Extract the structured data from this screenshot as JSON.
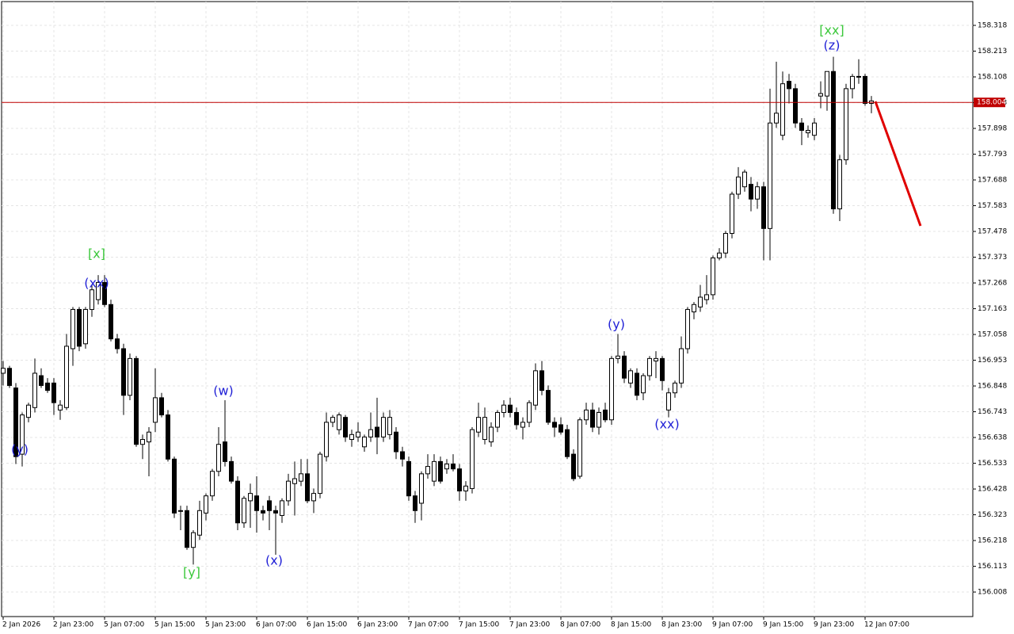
{
  "chart_data": {
    "type": "candlestick",
    "ylim": [
      155.908,
      158.415
    ],
    "yticks": [
      158.318,
      158.213,
      158.108,
      158.003,
      157.898,
      157.793,
      157.688,
      157.583,
      157.478,
      157.373,
      157.268,
      157.163,
      157.058,
      156.953,
      156.848,
      156.743,
      156.638,
      156.533,
      156.428,
      156.323,
      156.218,
      156.113,
      156.008
    ],
    "grid": true,
    "bull_color": "#ffffff",
    "bear_color": "#000000",
    "current_price": 158.004,
    "current_price_color": "#c00000",
    "categories": [
      "2 Jan 2026",
      null,
      null,
      null,
      null,
      null,
      null,
      null,
      "2 Jan 23:00",
      null,
      null,
      null,
      null,
      null,
      null,
      null,
      "5 Jan 07:00",
      null,
      null,
      null,
      null,
      null,
      null,
      null,
      "5 Jan 15:00",
      null,
      null,
      null,
      null,
      null,
      null,
      null,
      "5 Jan 23:00",
      null,
      null,
      null,
      null,
      null,
      null,
      null,
      "6 Jan 07:00",
      null,
      null,
      null,
      null,
      null,
      null,
      null,
      "6 Jan 15:00",
      null,
      null,
      null,
      null,
      null,
      null,
      null,
      "6 Jan 23:00",
      null,
      null,
      null,
      null,
      null,
      null,
      null,
      "7 Jan 07:00",
      null,
      null,
      null,
      null,
      null,
      null,
      null,
      "7 Jan 15:00",
      null,
      null,
      null,
      null,
      null,
      null,
      null,
      "7 Jan 23:00",
      null,
      null,
      null,
      null,
      null,
      null,
      null,
      "8 Jan 07:00",
      null,
      null,
      null,
      null,
      null,
      null,
      null,
      "8 Jan 15:00",
      null,
      null,
      null,
      null,
      null,
      null,
      null,
      "8 Jan 23:00",
      null,
      null,
      null,
      null,
      null,
      null,
      null,
      "9 Jan 07:00",
      null,
      null,
      null,
      null,
      null,
      null,
      null,
      "9 Jan 15:00",
      null,
      null,
      null,
      null,
      null,
      null,
      null,
      "9 Jan 23:00",
      null,
      null,
      null,
      null,
      null,
      null,
      null,
      "12 Jan 07:00",
      null
    ],
    "ohlc": [
      [
        156.9,
        156.95,
        156.85,
        156.92
      ],
      [
        156.92,
        156.93,
        156.84,
        156.85
      ],
      [
        156.84,
        156.86,
        156.53,
        156.56
      ],
      [
        156.57,
        156.74,
        156.52,
        156.73
      ],
      [
        156.72,
        156.78,
        156.7,
        156.77
      ],
      [
        156.76,
        156.96,
        156.74,
        156.9
      ],
      [
        156.89,
        156.92,
        156.84,
        156.85
      ],
      [
        156.86,
        156.88,
        156.82,
        156.83
      ],
      [
        156.86,
        156.88,
        156.73,
        156.78
      ],
      [
        156.75,
        156.79,
        156.71,
        156.77
      ],
      [
        156.76,
        157.06,
        156.75,
        157.01
      ],
      [
        157.0,
        157.17,
        156.93,
        157.16
      ],
      [
        157.16,
        157.17,
        156.99,
        157.01
      ],
      [
        157.02,
        157.17,
        157.0,
        157.16
      ],
      [
        157.16,
        157.26,
        157.13,
        157.24
      ],
      [
        157.2,
        157.3,
        157.18,
        157.27
      ],
      [
        157.27,
        157.3,
        157.17,
        157.18
      ],
      [
        157.18,
        157.2,
        157.03,
        157.04
      ],
      [
        157.04,
        157.06,
        156.98,
        157.0
      ],
      [
        157.0,
        157.02,
        156.73,
        156.81
      ],
      [
        156.81,
        156.98,
        156.79,
        156.96
      ],
      [
        156.96,
        156.97,
        156.6,
        156.61
      ],
      [
        156.61,
        156.65,
        156.55,
        156.63
      ],
      [
        156.62,
        156.68,
        156.48,
        156.66
      ],
      [
        156.7,
        156.92,
        156.66,
        156.8
      ],
      [
        156.8,
        156.82,
        156.72,
        156.73
      ],
      [
        156.73,
        156.75,
        156.54,
        156.55
      ],
      [
        156.55,
        156.56,
        156.31,
        156.33
      ],
      [
        156.34,
        156.36,
        156.26,
        156.34
      ],
      [
        156.34,
        156.36,
        156.18,
        156.19
      ],
      [
        156.19,
        156.26,
        156.12,
        156.25
      ],
      [
        156.24,
        156.38,
        156.22,
        156.34
      ],
      [
        156.33,
        156.41,
        156.3,
        156.4
      ],
      [
        156.4,
        156.51,
        156.38,
        156.5
      ],
      [
        156.5,
        156.68,
        156.48,
        156.61
      ],
      [
        156.62,
        156.79,
        156.52,
        156.54
      ],
      [
        156.54,
        156.56,
        156.45,
        156.46
      ],
      [
        156.46,
        156.48,
        156.26,
        156.29
      ],
      [
        156.29,
        156.4,
        156.27,
        156.39
      ],
      [
        156.38,
        156.45,
        156.27,
        156.41
      ],
      [
        156.4,
        156.48,
        156.25,
        156.34
      ],
      [
        156.34,
        156.36,
        156.3,
        156.33
      ],
      [
        156.38,
        156.4,
        156.26,
        156.34
      ],
      [
        156.34,
        156.36,
        156.16,
        156.33
      ],
      [
        156.32,
        156.39,
        156.29,
        156.38
      ],
      [
        156.38,
        156.49,
        156.36,
        156.46
      ],
      [
        156.45,
        156.54,
        156.32,
        156.47
      ],
      [
        156.46,
        156.55,
        156.44,
        156.49
      ],
      [
        156.49,
        156.55,
        156.37,
        156.38
      ],
      [
        156.38,
        156.43,
        156.33,
        156.41
      ],
      [
        156.41,
        156.58,
        156.39,
        156.57
      ],
      [
        156.56,
        156.74,
        156.54,
        156.7
      ],
      [
        156.7,
        156.73,
        156.68,
        156.72
      ],
      [
        156.67,
        156.74,
        156.65,
        156.73
      ],
      [
        156.72,
        156.73,
        156.62,
        156.64
      ],
      [
        156.63,
        156.67,
        156.6,
        156.65
      ],
      [
        156.64,
        156.7,
        156.62,
        156.66
      ],
      [
        156.6,
        156.65,
        156.58,
        156.64
      ],
      [
        156.64,
        156.74,
        156.62,
        156.67
      ],
      [
        156.68,
        156.8,
        156.57,
        156.64
      ],
      [
        156.64,
        156.74,
        156.62,
        156.72
      ],
      [
        156.65,
        156.75,
        156.63,
        156.72
      ],
      [
        156.66,
        156.68,
        156.55,
        156.58
      ],
      [
        156.58,
        156.6,
        156.52,
        156.55
      ],
      [
        156.54,
        156.56,
        156.38,
        156.4
      ],
      [
        156.4,
        156.42,
        156.29,
        156.34
      ],
      [
        156.37,
        156.5,
        156.3,
        156.49
      ],
      [
        156.49,
        156.57,
        156.47,
        156.52
      ],
      [
        156.46,
        156.57,
        156.44,
        156.54
      ],
      [
        156.54,
        156.56,
        156.45,
        156.46
      ],
      [
        156.51,
        156.55,
        156.49,
        156.53
      ],
      [
        156.53,
        156.57,
        156.5,
        156.51
      ],
      [
        156.51,
        156.53,
        156.38,
        156.42
      ],
      [
        156.42,
        156.46,
        156.38,
        156.44
      ],
      [
        156.43,
        156.68,
        156.41,
        156.67
      ],
      [
        156.66,
        156.78,
        156.64,
        156.72
      ],
      [
        156.63,
        156.76,
        156.61,
        156.72
      ],
      [
        156.62,
        156.7,
        156.6,
        156.68
      ],
      [
        156.68,
        156.75,
        156.66,
        156.74
      ],
      [
        156.74,
        156.79,
        156.72,
        156.77
      ],
      [
        156.77,
        156.8,
        156.72,
        156.74
      ],
      [
        156.74,
        156.76,
        156.67,
        156.69
      ],
      [
        156.68,
        156.72,
        156.63,
        156.7
      ],
      [
        156.7,
        156.79,
        156.68,
        156.78
      ],
      [
        156.77,
        156.94,
        156.75,
        156.91
      ],
      [
        156.91,
        156.95,
        156.81,
        156.83
      ],
      [
        156.83,
        156.85,
        156.69,
        156.7
      ],
      [
        156.7,
        156.72,
        156.64,
        156.68
      ],
      [
        156.69,
        156.72,
        156.65,
        156.66
      ],
      [
        156.67,
        156.69,
        156.55,
        156.56
      ],
      [
        156.57,
        156.59,
        156.46,
        156.47
      ],
      [
        156.48,
        156.72,
        156.47,
        156.71
      ],
      [
        156.71,
        156.78,
        156.69,
        156.75
      ],
      [
        156.75,
        156.78,
        156.66,
        156.68
      ],
      [
        156.68,
        156.76,
        156.65,
        156.74
      ],
      [
        156.75,
        156.78,
        156.7,
        156.71
      ],
      [
        156.71,
        156.97,
        156.69,
        156.96
      ],
      [
        156.96,
        157.06,
        156.94,
        156.97
      ],
      [
        156.97,
        156.99,
        156.86,
        156.88
      ],
      [
        156.86,
        156.92,
        156.84,
        156.91
      ],
      [
        156.9,
        156.92,
        156.79,
        156.81
      ],
      [
        156.82,
        156.9,
        156.79,
        156.89
      ],
      [
        156.89,
        156.97,
        156.87,
        156.96
      ],
      [
        156.95,
        156.99,
        156.88,
        156.96
      ],
      [
        156.96,
        156.97,
        156.83,
        156.87
      ],
      [
        156.75,
        156.84,
        156.72,
        156.82
      ],
      [
        156.82,
        156.87,
        156.8,
        156.86
      ],
      [
        156.86,
        157.05,
        156.84,
        157.0
      ],
      [
        157.0,
        157.17,
        156.98,
        157.16
      ],
      [
        157.15,
        157.19,
        157.12,
        157.18
      ],
      [
        157.17,
        157.26,
        157.15,
        157.21
      ],
      [
        157.2,
        157.3,
        157.18,
        157.22
      ],
      [
        157.22,
        157.38,
        157.2,
        157.37
      ],
      [
        157.37,
        157.41,
        157.36,
        157.39
      ],
      [
        157.39,
        157.48,
        157.37,
        157.47
      ],
      [
        157.47,
        157.64,
        157.45,
        157.63
      ],
      [
        157.63,
        157.74,
        157.61,
        157.7
      ],
      [
        157.66,
        157.73,
        157.64,
        157.72
      ],
      [
        157.67,
        157.7,
        157.56,
        157.61
      ],
      [
        157.61,
        157.68,
        157.57,
        157.66
      ],
      [
        157.66,
        157.68,
        157.36,
        157.49
      ],
      [
        157.49,
        158.06,
        157.36,
        157.92
      ],
      [
        157.92,
        158.17,
        157.9,
        157.96
      ],
      [
        157.87,
        158.13,
        157.85,
        158.08
      ],
      [
        158.09,
        158.12,
        158.0,
        158.06
      ],
      [
        158.06,
        158.08,
        157.9,
        157.92
      ],
      [
        157.92,
        157.94,
        157.83,
        157.89
      ],
      [
        157.88,
        157.91,
        157.86,
        157.89
      ],
      [
        157.87,
        157.94,
        157.85,
        157.92
      ],
      [
        158.03,
        158.09,
        157.98,
        158.04
      ],
      [
        158.03,
        158.13,
        157.97,
        158.13
      ],
      [
        158.13,
        158.19,
        157.55,
        157.57
      ],
      [
        157.57,
        157.79,
        157.52,
        157.77
      ],
      [
        157.77,
        158.08,
        157.75,
        158.06
      ],
      [
        158.06,
        158.12,
        158.02,
        158.11
      ],
      [
        158.11,
        158.18,
        158.08,
        158.11
      ],
      [
        158.11,
        158.12,
        157.99,
        158.0
      ],
      [
        158.0,
        158.03,
        157.96,
        158.01
      ]
    ],
    "annotations": [
      "(y)",
      "[x]",
      "(xx)",
      "[y]",
      "(w)",
      "(x)",
      "(y)",
      "(xx)",
      "[xx]",
      "(z)"
    ]
  }
}
